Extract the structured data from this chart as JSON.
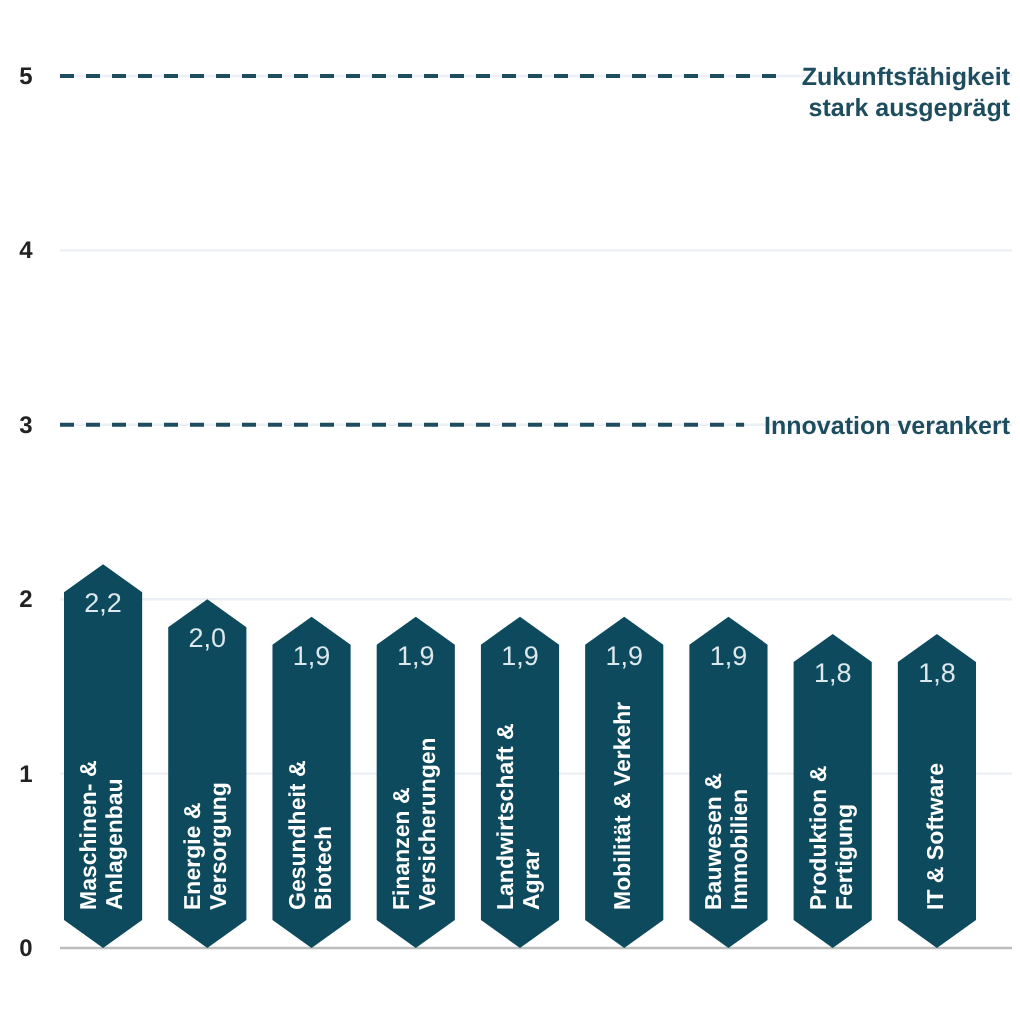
{
  "chart_data": {
    "type": "bar",
    "categories": [
      "Maschinen- &\nAnlagenbau",
      "Energie &\nVersorgung",
      "Gesundheit &\nBiotech",
      "Finanzen &\nVersicherungen",
      "Landwirtschaft &\nAgrar",
      "Mobilität & Verkehr",
      "Bauwesen &\nImmobilien",
      "Produktion &\nFertigung",
      "IT & Software"
    ],
    "values": [
      2.2,
      2.0,
      1.9,
      1.9,
      1.9,
      1.9,
      1.9,
      1.8,
      1.8
    ],
    "value_labels": [
      "2,2",
      "2,0",
      "1,9",
      "1,9",
      "1,9",
      "1,9",
      "1,9",
      "1,8",
      "1,8"
    ],
    "color": "#0d4a5e",
    "ylim": [
      0,
      5
    ],
    "yticks": [
      0,
      1,
      2,
      3,
      4,
      5
    ],
    "grid": "y",
    "ref_lines": [
      {
        "axis": "y",
        "value": 5,
        "label": "Zukunftsfähigkeit\nstark ausgeprägt",
        "color": "#1d4d5e",
        "line_style": "dashed"
      },
      {
        "axis": "y",
        "value": 3,
        "label": "Innovation verankert",
        "color": "#1d4d5e",
        "line_style": "dashed"
      }
    ]
  }
}
